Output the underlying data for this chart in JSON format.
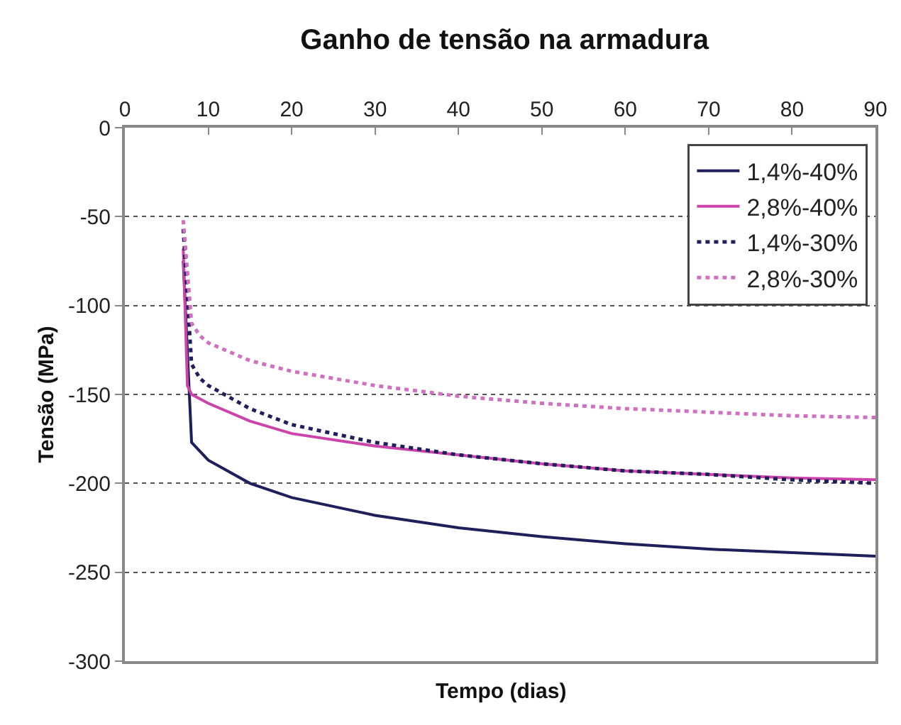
{
  "chart_data": {
    "type": "line",
    "title": "Ganho de tensão na armadura",
    "xlabel": "Tempo (dias)",
    "ylabel": "Tensão (MPa)",
    "xlim": [
      0,
      90
    ],
    "xticks": [
      0,
      10,
      20,
      30,
      40,
      50,
      60,
      70,
      80,
      90
    ],
    "ylim": [
      -300,
      0
    ],
    "yticks": [
      -300,
      -250,
      -200,
      -150,
      -100,
      -50,
      0
    ],
    "grid": "y",
    "legend": "top right",
    "series": [
      {
        "name": "1,4%-40%",
        "color": "#1f1f5c",
        "line_style": "solid",
        "x": [
          7,
          8,
          10,
          15,
          20,
          30,
          40,
          50,
          60,
          70,
          80,
          90
        ],
        "values": [
          -75,
          -177,
          -187,
          -200,
          -208,
          -218,
          -225,
          -230,
          -234,
          -237,
          -239,
          -241
        ]
      },
      {
        "name": "2,8%-40%",
        "color": "#cc44aa",
        "line_style": "solid",
        "x": [
          7,
          7.5,
          8,
          10,
          15,
          20,
          30,
          40,
          50,
          60,
          70,
          80,
          90
        ],
        "values": [
          -68,
          -145,
          -150,
          -155,
          -165,
          -172,
          -179,
          -184,
          -189,
          -193,
          -195,
          -197,
          -198
        ]
      },
      {
        "name": "1,4%-30%",
        "color": "#1f1f5c",
        "line_style": "dotted",
        "x": [
          7,
          8,
          9,
          10,
          15,
          20,
          30,
          40,
          50,
          60,
          70,
          80,
          90
        ],
        "values": [
          -57,
          -133,
          -141,
          -145,
          -158,
          -167,
          -177,
          -184,
          -189,
          -193,
          -195,
          -198,
          -200
        ]
      },
      {
        "name": "2,8%-30%",
        "color": "#d070c0",
        "line_style": "dotted",
        "x": [
          7,
          8,
          9,
          10,
          15,
          20,
          30,
          40,
          50,
          60,
          70,
          80,
          90
        ],
        "values": [
          -52,
          -110,
          -117,
          -121,
          -131,
          -137,
          -145,
          -151,
          -155,
          -158,
          -160,
          -162,
          -163
        ]
      }
    ]
  }
}
